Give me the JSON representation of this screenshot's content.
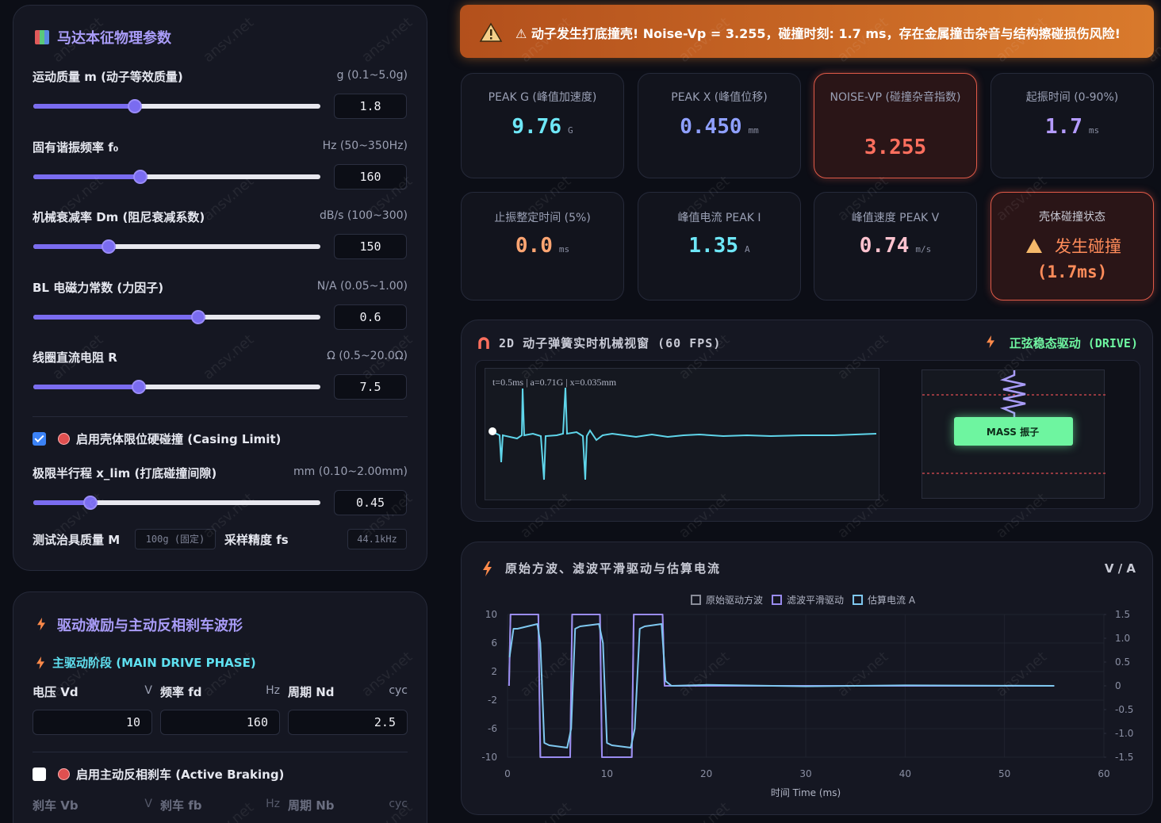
{
  "watermark": "ansv.net",
  "physics_panel": {
    "title": "马达本征物理参数",
    "params": [
      {
        "label": "运动质量 m (动子等效质量)",
        "unit": "g (0.1~5.0g)",
        "value": "1.8"
      },
      {
        "label": "固有谐振频率 f₀",
        "unit": "Hz (50~350Hz)",
        "value": "160"
      },
      {
        "label": "机械衰减率 Dm (阻尼衰减系数)",
        "unit": "dB/s (100~300)",
        "value": "150"
      },
      {
        "label": "BL 电磁力常数 (力因子)",
        "unit": "N/A (0.05~1.00)",
        "value": "0.6"
      },
      {
        "label": "线圈直流电阻 R",
        "unit": "Ω (0.5~20.0Ω)",
        "value": "7.5"
      }
    ],
    "casing_checkbox": "启用壳体限位硬碰撞 (Casing Limit)",
    "xlim_param": {
      "label": "极限半行程 x_lim (打底碰撞间隙)",
      "unit": "mm (0.10~2.00mm)",
      "value": "0.45"
    },
    "fixture_label": "测试治具质量 M",
    "fixture_value": "100g (固定)",
    "fs_label": "采样精度 fs",
    "fs_value": "44.1kHz"
  },
  "drive_panel": {
    "title": "驱动激励与主动反相刹车波形",
    "phase": "主驱动阶段 (MAIN DRIVE PHASE)",
    "main_fields": [
      {
        "label": "电压 Vd",
        "unit": "V",
        "value": "10"
      },
      {
        "label": "频率 fd",
        "unit": "Hz",
        "value": "160"
      },
      {
        "label": "周期 Nd",
        "unit": "cyc",
        "value": "2.5"
      }
    ],
    "brake_checkbox": "启用主动反相刹车 (Active Braking)",
    "brake_fields": [
      {
        "label": "刹车 Vb",
        "unit": "V"
      },
      {
        "label": "刹车 fb",
        "unit": "Hz"
      },
      {
        "label": "周期 Nb",
        "unit": "cyc"
      }
    ]
  },
  "alert": "⚠ 动子发生打底撞壳! Noise-Vp = 3.255，碰撞时刻: 1.7 ms，存在金属撞击杂音与结构擦碰损伤风险!",
  "metrics": [
    {
      "label": "PEAK G (峰值加速度)",
      "value": "9.76",
      "unit": "G",
      "color": "#6ee7f7"
    },
    {
      "label": "PEAK X (峰值位移)",
      "value": "0.450",
      "unit": "mm",
      "color": "#8fa0ff"
    },
    {
      "label": "NOISE-VP (碰撞杂音指数)",
      "value": "3.255",
      "color": "#ff6f5e",
      "alarm": true
    },
    {
      "label": "起振时间 (0-90%)",
      "value": "1.7",
      "unit": "ms",
      "color": "#b49bff"
    },
    {
      "label": "止振整定时间 (5%)",
      "value": "0.0",
      "unit": "ms",
      "color": "#ffa572"
    },
    {
      "label": "峰值电流 PEAK I",
      "value": "1.35",
      "unit": "A",
      "color": "#6ee7f7"
    },
    {
      "label": "峰值速度 PEAK V",
      "value": "0.74",
      "unit": "m/s",
      "color": "#ffc3cf"
    }
  ],
  "status_card": {
    "label": "壳体碰撞状态",
    "status": "发生碰撞",
    "detail": "(1.7ms)"
  },
  "mechanical_view": {
    "title": "2D 动子弹簧实时机械视窗 (60 FPS)",
    "mode": "正弦稳态驱动 (DRIVE)",
    "readout": "t=0.5ms | a=0.71G | x=0.035mm",
    "mass_label": "MASS 振子"
  },
  "chart_data": {
    "type": "line",
    "title": "原始方波、滤波平滑驱动与估算电流",
    "unit_label": "V / A",
    "x_label": "时间 Time (ms)",
    "xlim": [
      0,
      60
    ],
    "xticks": [
      0,
      10,
      20,
      30,
      40,
      50,
      60
    ],
    "ylim": [
      -10,
      10
    ],
    "yticks": [
      10,
      6,
      2,
      -2,
      -6,
      -10
    ],
    "y2lim": [
      -1.5,
      1.5
    ],
    "y2ticks": [
      {
        "value": 1.5,
        "label": "1.5"
      },
      {
        "value": 1,
        "label": "1.0"
      },
      {
        "value": 0.5,
        "label": "0.5"
      },
      0,
      {
        "value": -0.5,
        "label": "-0.5"
      },
      {
        "value": -1,
        "label": "-1.0"
      },
      {
        "value": -1.5,
        "label": "-1.5"
      }
    ],
    "grid": true,
    "series": [
      {
        "name": "原始驱动方波",
        "color": "#8a8d99",
        "x": [
          0.15,
          0.3,
          3.1,
          3.3,
          6.3,
          6.5,
          9.3,
          9.5,
          12.5,
          12.7,
          15.6,
          15.8,
          55
        ],
        "values": [
          0,
          10,
          10,
          -10,
          -10,
          10,
          10,
          -10,
          -10,
          10,
          10,
          0,
          0
        ]
      },
      {
        "name": "滤波平滑驱动",
        "color": "#9a8cf0",
        "x": [
          0.15,
          0.3,
          3.1,
          3.3,
          6.3,
          6.5,
          9.3,
          9.5,
          12.5,
          12.7,
          15.6,
          15.8,
          55
        ],
        "values": [
          0,
          10,
          10,
          -10,
          -10,
          10,
          10,
          -10,
          -10,
          10,
          10,
          0,
          0
        ]
      },
      {
        "name": "估算电流 A",
        "color": "#7fc8f0",
        "axis": "y2",
        "x": [
          0.2,
          0.6,
          1,
          3,
          3.3,
          3.7,
          4.2,
          6,
          6.4,
          6.8,
          7.3,
          9.2,
          9.6,
          10,
          10.5,
          12.4,
          12.8,
          13.3,
          13.8,
          15.5,
          15.9,
          16.5,
          20,
          30,
          40,
          55
        ],
        "values": [
          0.6,
          1.2,
          1.2,
          1.3,
          0.9,
          -1.2,
          -1.25,
          -1.3,
          -0.9,
          1.2,
          1.25,
          1.3,
          0.9,
          -1.2,
          -1.25,
          -1.3,
          -0.9,
          1.2,
          1.25,
          1.3,
          0.1,
          0,
          0.02,
          -0.01,
          0.01,
          0
        ]
      }
    ]
  }
}
